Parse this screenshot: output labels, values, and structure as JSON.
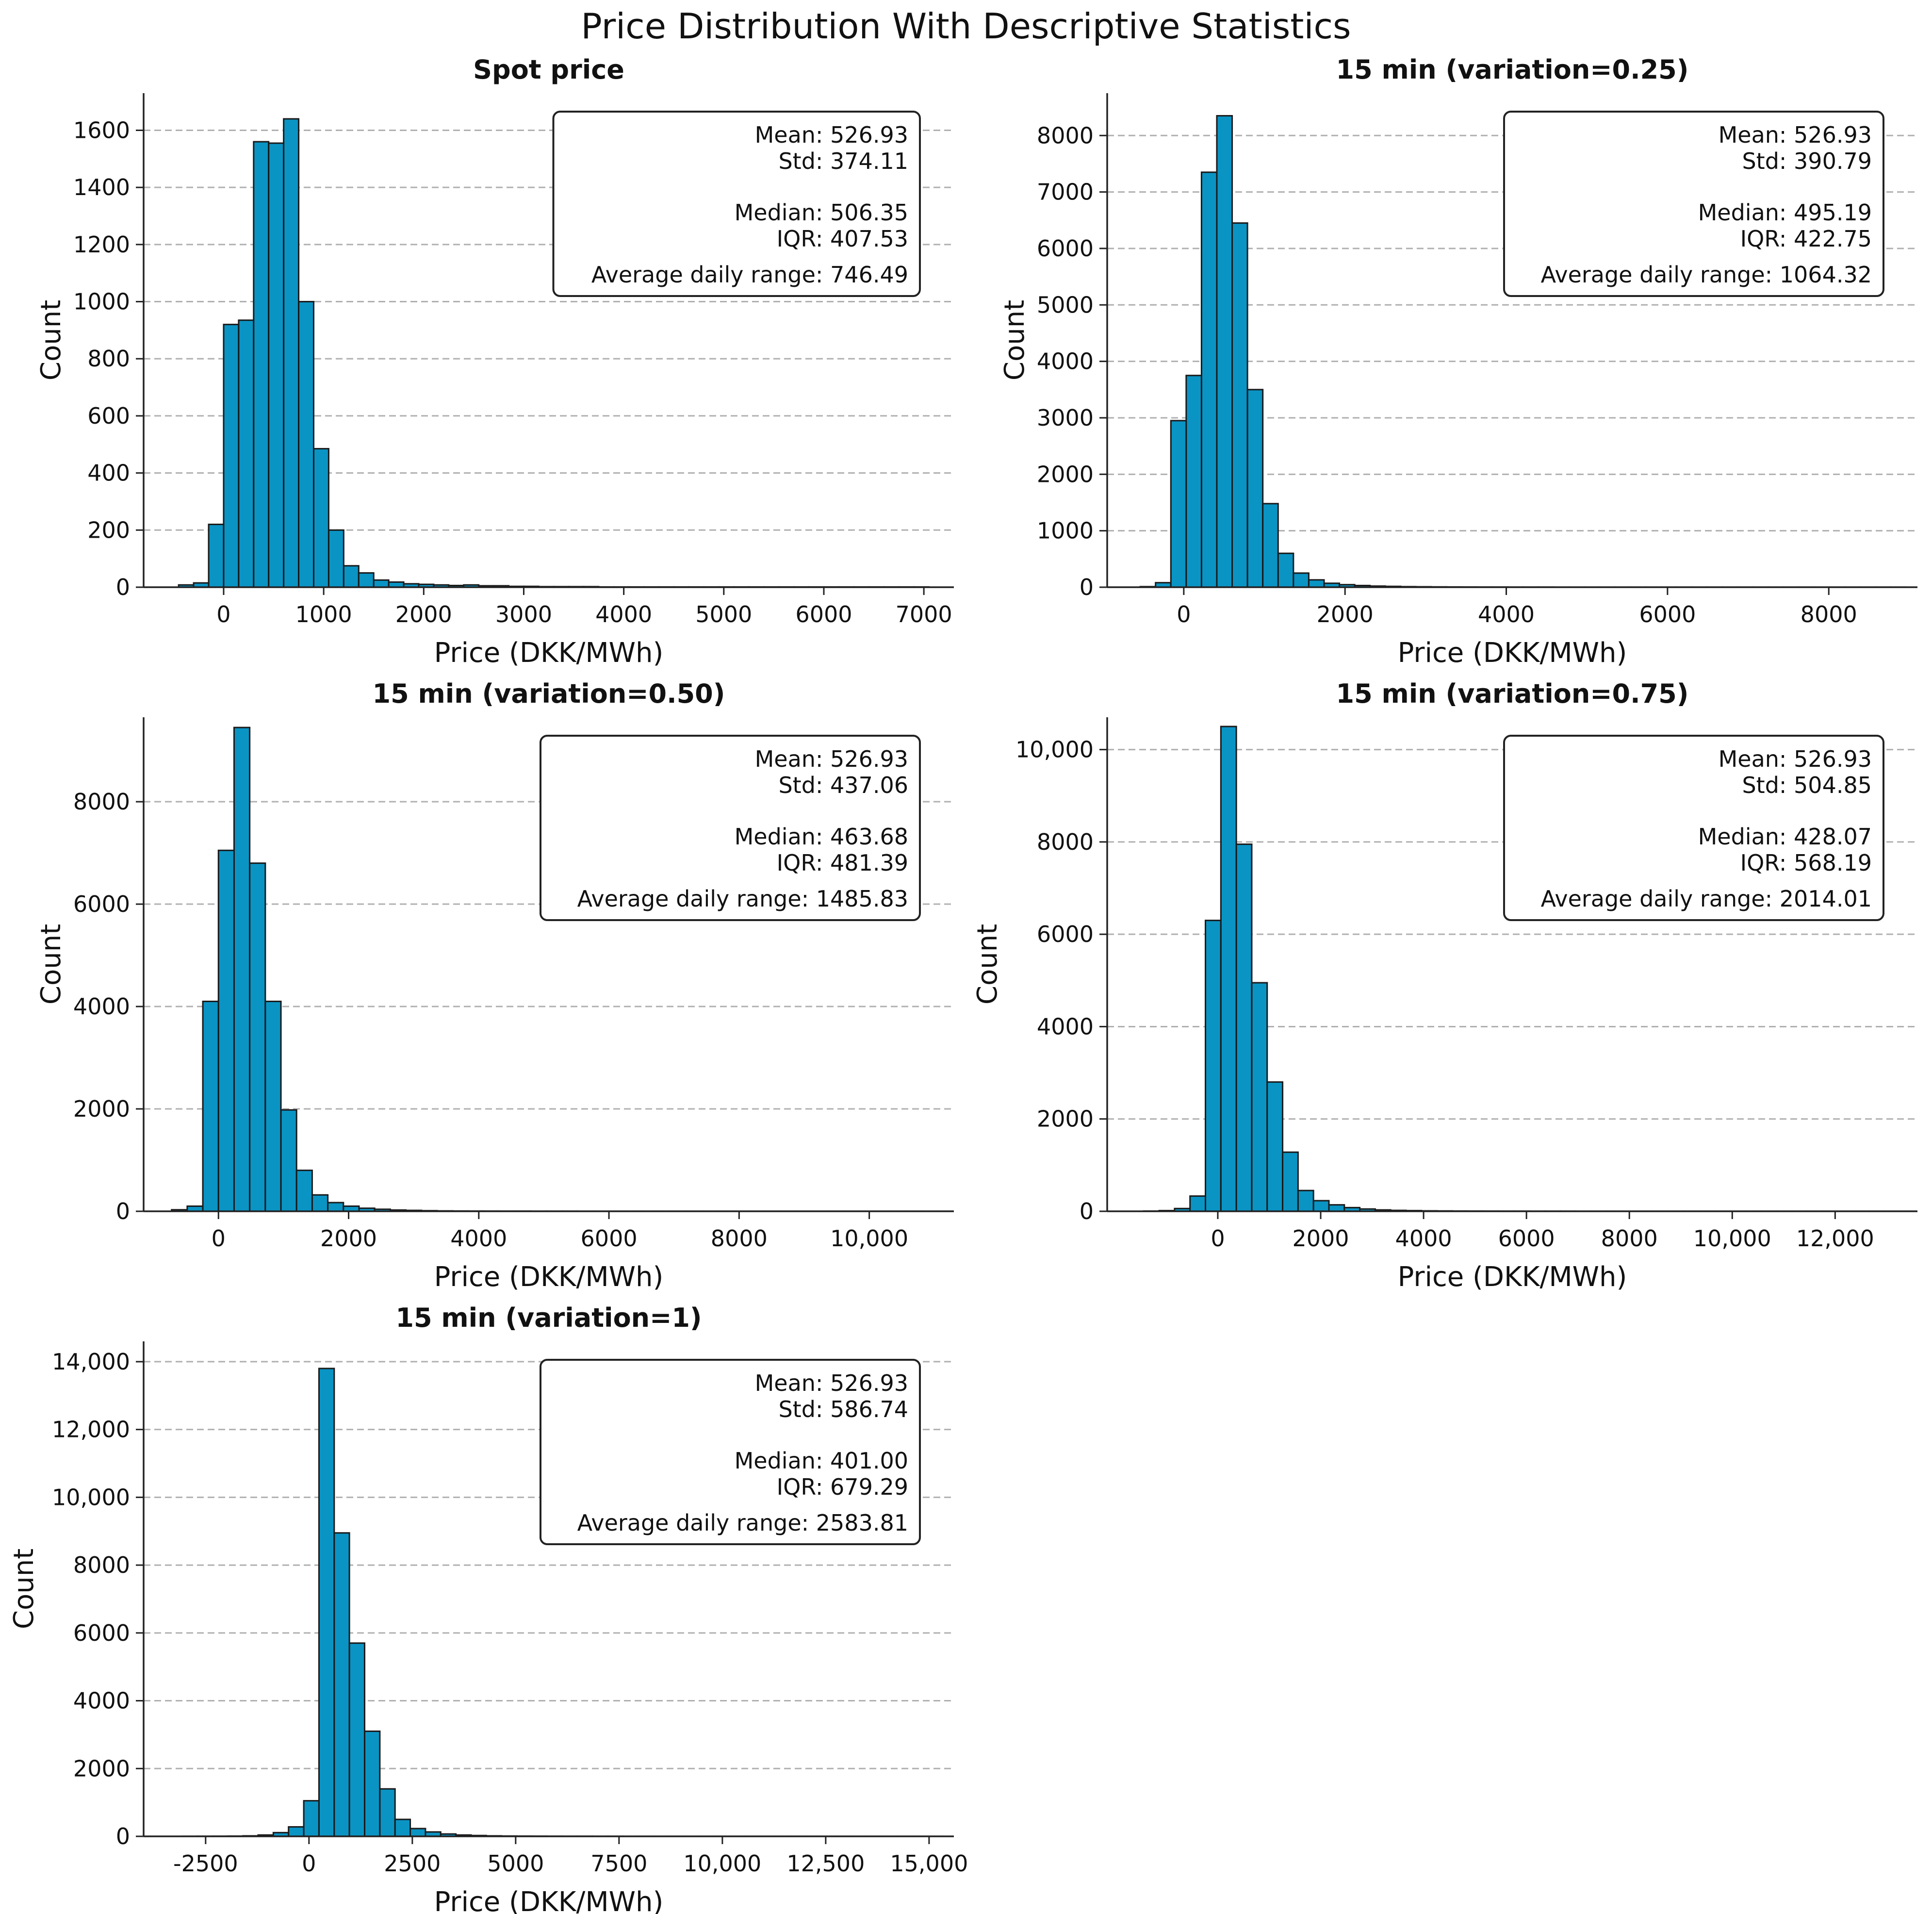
{
  "figure": {
    "title": "Price Distribution With Descriptive Statistics",
    "bar_color": "#0a94c4",
    "bar_edge_color": "#1a1a1a",
    "grid_color": "#b0b0b0"
  },
  "chart_data": [
    {
      "type": "bar",
      "title": "Spot price",
      "xlabel": "Price (DKK/MWh)",
      "ylabel": "Count",
      "xlim": [
        -800,
        7300
      ],
      "ylim": [
        0,
        1730
      ],
      "xticks": [
        0,
        1000,
        2000,
        3000,
        4000,
        5000,
        6000,
        7000
      ],
      "xtick_labels": [
        "0",
        "1000",
        "2000",
        "3000",
        "4000",
        "5000",
        "6000",
        "7000"
      ],
      "yticks": [
        0,
        200,
        400,
        600,
        800,
        1000,
        1200,
        1400,
        1600
      ],
      "ytick_labels": [
        "0",
        "200",
        "400",
        "600",
        "800",
        "1000",
        "1200",
        "1400",
        "1600"
      ],
      "grid": "y",
      "bin_start": -450,
      "bin_width": 150,
      "counts": [
        8,
        15,
        220,
        920,
        935,
        1560,
        1555,
        1640,
        1000,
        485,
        200,
        75,
        50,
        25,
        18,
        12,
        10,
        8,
        6,
        8,
        5,
        5,
        3,
        3,
        2,
        2,
        2,
        2,
        1,
        1,
        1,
        1,
        1,
        1,
        1,
        1,
        1,
        1,
        1,
        1,
        1,
        1,
        1,
        1,
        1,
        1,
        1,
        1,
        1,
        1
      ],
      "stats_box": {
        "mean": "Mean: 526.93",
        "std": "Std: 374.11",
        "median": "Median: 506.35",
        "iqr": "IQR: 407.53",
        "range": "Average daily range: 746.49"
      }
    },
    {
      "type": "bar",
      "title": "15 min (variation=0.25)",
      "xlabel": "Price (DKK/MWh)",
      "ylabel": "Count",
      "xlim": [
        -950,
        9100
      ],
      "ylim": [
        0,
        8750
      ],
      "xticks": [
        0,
        2000,
        4000,
        6000,
        8000
      ],
      "xtick_labels": [
        "0",
        "2000",
        "4000",
        "6000",
        "8000"
      ],
      "yticks": [
        0,
        1000,
        2000,
        3000,
        4000,
        5000,
        6000,
        7000,
        8000
      ],
      "ytick_labels": [
        "0",
        "1000",
        "2000",
        "3000",
        "4000",
        "5000",
        "6000",
        "7000",
        "8000"
      ],
      "grid": "y",
      "bin_start": -540,
      "bin_width": 190,
      "counts": [
        10,
        80,
        2950,
        3750,
        7350,
        8350,
        6450,
        3500,
        1480,
        600,
        250,
        130,
        70,
        45,
        30,
        20,
        15,
        10,
        8,
        6,
        5,
        4,
        3,
        3,
        2,
        2,
        2,
        1,
        1,
        1,
        1,
        1,
        1,
        1,
        1,
        1,
        1,
        1,
        1,
        1,
        1,
        1,
        1,
        1,
        1,
        1,
        1,
        1,
        1,
        1
      ],
      "stats_box": {
        "mean": "Mean: 526.93",
        "std": "Std: 390.79",
        "median": "Median: 495.19",
        "iqr": "IQR: 422.75",
        "range": "Average daily range: 1064.32"
      }
    },
    {
      "type": "bar",
      "title": "15 min (variation=0.50)",
      "xlabel": "Price (DKK/MWh)",
      "ylabel": "Count",
      "xlim": [
        -1150,
        11300
      ],
      "ylim": [
        0,
        9650
      ],
      "xticks": [
        0,
        2000,
        4000,
        6000,
        8000,
        10000
      ],
      "xtick_labels": [
        "0",
        "2000",
        "4000",
        "6000",
        "8000",
        "10,000"
      ],
      "yticks": [
        0,
        2000,
        4000,
        6000,
        8000
      ],
      "ytick_labels": [
        "0",
        "2000",
        "4000",
        "6000",
        "8000"
      ],
      "grid": "y",
      "bin_start": -720,
      "bin_width": 240,
      "counts": [
        30,
        100,
        4100,
        7050,
        9450,
        6800,
        4100,
        1980,
        800,
        320,
        170,
        100,
        60,
        40,
        25,
        18,
        12,
        8,
        6,
        5,
        4,
        3,
        3,
        2,
        2,
        2,
        1,
        1,
        1,
        1,
        1,
        1,
        1,
        1,
        1,
        1,
        1,
        1,
        1,
        1,
        1,
        1,
        1,
        1,
        1,
        1,
        1,
        1,
        1,
        1
      ],
      "stats_box": {
        "mean": "Mean: 526.93",
        "std": "Std: 437.06",
        "median": "Median: 463.68",
        "iqr": "IQR: 481.39",
        "range": "Average daily range: 1485.83"
      }
    },
    {
      "type": "bar",
      "title": "15 min (variation=0.75)",
      "xlabel": "Price (DKK/MWh)",
      "ylabel": "Count",
      "xlim": [
        -2150,
        13600
      ],
      "ylim": [
        0,
        10700
      ],
      "xticks": [
        0,
        2000,
        4000,
        6000,
        8000,
        10000,
        12000
      ],
      "xtick_labels": [
        "0",
        "2000",
        "4000",
        "6000",
        "8000",
        "10,000",
        "12,000"
      ],
      "yticks": [
        0,
        2000,
        4000,
        6000,
        8000,
        10000
      ],
      "ytick_labels": [
        "0",
        "2000",
        "4000",
        "6000",
        "8000",
        "10,000"
      ],
      "grid": "y",
      "bin_start": -1440,
      "bin_width": 300,
      "counts": [
        5,
        15,
        60,
        330,
        6300,
        10500,
        7950,
        4950,
        2800,
        1280,
        450,
        230,
        140,
        80,
        50,
        30,
        20,
        15,
        10,
        8,
        6,
        5,
        4,
        3,
        3,
        2,
        2,
        2,
        1,
        1,
        1,
        1,
        1,
        1,
        1,
        1,
        1,
        1,
        1,
        1,
        1,
        1,
        1,
        1,
        1,
        1,
        1,
        1,
        1,
        1
      ],
      "stats_box": {
        "mean": "Mean: 526.93",
        "std": "Std: 504.85",
        "median": "Median: 428.07",
        "iqr": "IQR: 568.19",
        "range": "Average daily range: 2014.01"
      }
    },
    {
      "type": "bar",
      "title": "15 min (variation=1)",
      "xlabel": "Price (DKK/MWh)",
      "ylabel": "Count",
      "xlim": [
        -4000,
        15600
      ],
      "ylim": [
        0,
        14600
      ],
      "xticks": [
        -2500,
        0,
        2500,
        5000,
        7500,
        10000,
        12500,
        15000
      ],
      "xtick_labels": [
        "-2500",
        "0",
        "2500",
        "5000",
        "7500",
        "10,000",
        "12,500",
        "15,000"
      ],
      "yticks": [
        0,
        2000,
        4000,
        6000,
        8000,
        10000,
        12000,
        14000
      ],
      "ytick_labels": [
        "0",
        "2000",
        "4000",
        "6000",
        "8000",
        "10,000",
        "12,000",
        "14,000"
      ],
      "grid": "y",
      "bin_start": -3070,
      "bin_width": 368,
      "counts": [
        2,
        3,
        5,
        8,
        15,
        40,
        110,
        280,
        1050,
        13800,
        8950,
        5700,
        3100,
        1400,
        500,
        230,
        130,
        70,
        40,
        25,
        15,
        10,
        8,
        6,
        4,
        3,
        3,
        2,
        2,
        1,
        1,
        1,
        1,
        1,
        1,
        1,
        1,
        1,
        1,
        1,
        1,
        1,
        1,
        1,
        1,
        1,
        1,
        1,
        1,
        1
      ],
      "stats_box": {
        "mean": "Mean: 526.93",
        "std": "Std: 586.74",
        "median": "Median: 401.00",
        "iqr": "IQR: 679.29",
        "range": "Average daily range: 2583.81"
      }
    }
  ]
}
